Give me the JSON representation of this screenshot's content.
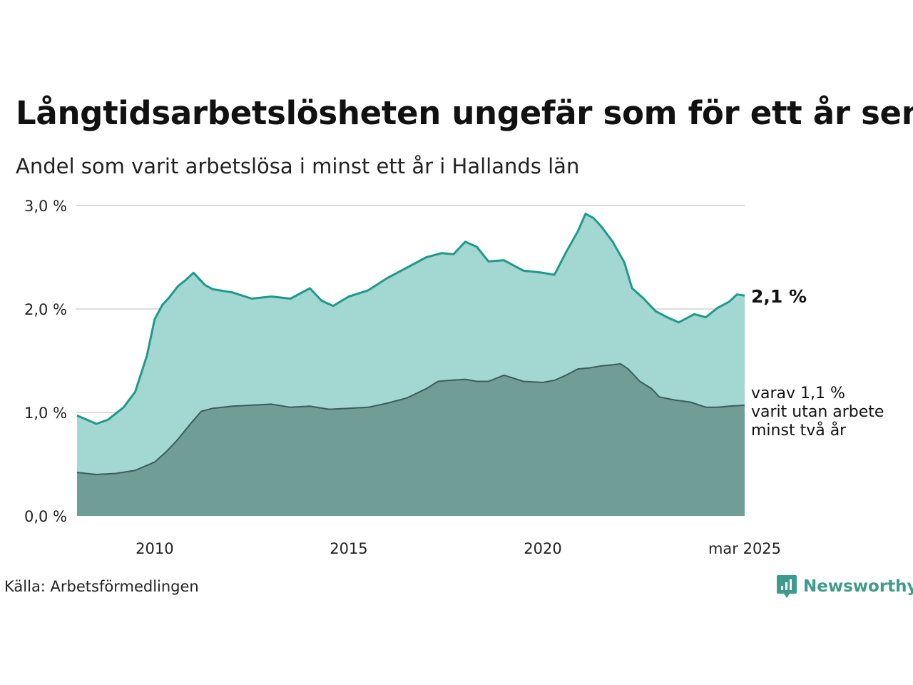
{
  "title": "Långtidsarbetslösheten ungefär som för ett år sen",
  "subtitle": "Andel som varit arbetslösa i minst ett år i Hallands län",
  "source": "Källa: Arbetsförmedlingen",
  "logo_text": "Newsworthy",
  "colors": {
    "total_fill": "#a3d7d1",
    "total_line": "#1f9a8a",
    "long_fill": "#709e97",
    "long_line": "#3b5e59",
    "grid": "#dddddd"
  },
  "chart_data": {
    "type": "area",
    "title": "Långtidsarbetslösheten ungefär som för ett år sen",
    "subtitle": "Andel som varit arbetslösa i minst ett år i Hallands län",
    "ylim": [
      0,
      3
    ],
    "y_ticks": [
      0,
      1,
      2,
      3
    ],
    "y_tick_labels": [
      "0,0 %",
      "1,0 %",
      "2,0 %",
      "3,0 %"
    ],
    "xlim": [
      2008.0,
      2025.2
    ],
    "x_ticks": [
      2010,
      2015,
      2020,
      2025.2
    ],
    "x_tick_labels": [
      "2010",
      "2015",
      "2020",
      "mar 2025"
    ],
    "grid": "horizontal",
    "series": [
      {
        "key": "total",
        "x": [
          2008.0,
          2008.5,
          2008.8,
          2009.2,
          2009.5,
          2009.8,
          2010.0,
          2010.2,
          2010.35,
          2010.6,
          2010.8,
          2011.0,
          2011.3,
          2011.5,
          2012.0,
          2012.5,
          2013.0,
          2013.5,
          2014.0,
          2014.3,
          2014.6,
          2015.0,
          2015.5,
          2016.0,
          2016.5,
          2017.0,
          2017.4,
          2017.7,
          2018.0,
          2018.3,
          2018.6,
          2019.0,
          2019.5,
          2020.0,
          2020.3,
          2020.6,
          2020.9,
          2021.1,
          2021.3,
          2021.5,
          2021.8,
          2022.1,
          2022.3,
          2022.6,
          2022.9,
          2023.2,
          2023.5,
          2023.9,
          2024.2,
          2024.5,
          2024.8,
          2025.0,
          2025.2
        ],
        "y": [
          0.97,
          0.89,
          0.93,
          1.05,
          1.2,
          1.55,
          1.9,
          2.04,
          2.1,
          2.22,
          2.28,
          2.35,
          2.23,
          2.19,
          2.16,
          2.1,
          2.12,
          2.1,
          2.2,
          2.08,
          2.03,
          2.12,
          2.18,
          2.3,
          2.4,
          2.5,
          2.54,
          2.53,
          2.65,
          2.6,
          2.46,
          2.47,
          2.37,
          2.35,
          2.33,
          2.55,
          2.75,
          2.92,
          2.88,
          2.8,
          2.65,
          2.45,
          2.2,
          2.1,
          1.98,
          1.92,
          1.87,
          1.95,
          1.92,
          2.01,
          2.07,
          2.14,
          2.13
        ]
      },
      {
        "key": "long",
        "x": [
          2008.0,
          2008.5,
          2009.0,
          2009.5,
          2010.0,
          2010.3,
          2010.6,
          2010.9,
          2011.2,
          2011.5,
          2012.0,
          2012.5,
          2013.0,
          2013.5,
          2014.0,
          2014.5,
          2015.0,
          2015.5,
          2016.0,
          2016.5,
          2017.0,
          2017.3,
          2017.6,
          2018.0,
          2018.3,
          2018.6,
          2019.0,
          2019.5,
          2020.0,
          2020.3,
          2020.6,
          2020.9,
          2021.2,
          2021.5,
          2021.8,
          2022.0,
          2022.2,
          2022.5,
          2022.8,
          2023.0,
          2023.4,
          2023.8,
          2024.2,
          2024.5,
          2024.8,
          2025.2
        ],
        "y": [
          0.42,
          0.4,
          0.41,
          0.44,
          0.52,
          0.62,
          0.74,
          0.88,
          1.01,
          1.04,
          1.06,
          1.07,
          1.08,
          1.05,
          1.06,
          1.03,
          1.04,
          1.05,
          1.09,
          1.14,
          1.23,
          1.3,
          1.31,
          1.32,
          1.3,
          1.3,
          1.36,
          1.3,
          1.29,
          1.31,
          1.36,
          1.42,
          1.43,
          1.45,
          1.46,
          1.47,
          1.42,
          1.3,
          1.23,
          1.15,
          1.12,
          1.1,
          1.05,
          1.05,
          1.06,
          1.07
        ]
      }
    ],
    "annotations": [
      {
        "key": "total_label",
        "text": "2,1 %"
      },
      {
        "key": "long_label",
        "lines": [
          "varav 1,1 %",
          "varit utan arbete",
          "minst två år"
        ]
      }
    ]
  }
}
